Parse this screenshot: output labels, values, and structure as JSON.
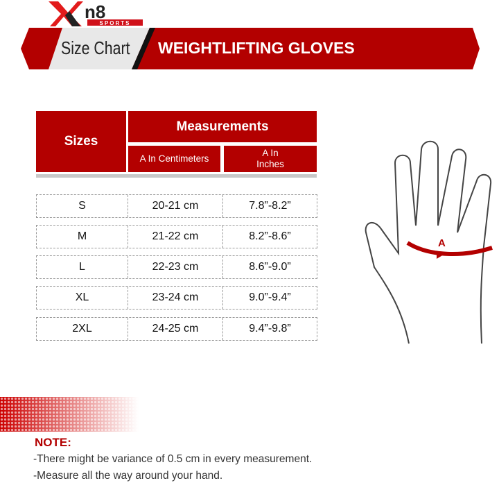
{
  "brand": {
    "logo_text": "Xn8",
    "logo_sub": "SPORTS"
  },
  "banner": {
    "left": "Size Chart",
    "right": "WEIGHTLIFTING GLOVES"
  },
  "colors": {
    "accent": "#b30000"
  },
  "table": {
    "header_sizes": "Sizes",
    "header_measurements": "Measurements",
    "sub_cm": "A In Centimeters",
    "sub_in": "A In Inches",
    "rows": [
      {
        "size": "S",
        "cm": "20-21 cm",
        "in": "7.8”-8.2”"
      },
      {
        "size": "M",
        "cm": "21-22 cm",
        "in": "8.2”-8.6”"
      },
      {
        "size": "L",
        "cm": "22-23 cm",
        "in": "8.6”-9.0”"
      },
      {
        "size": "XL",
        "cm": "23-24 cm",
        "in": "9.0”-9.4”"
      },
      {
        "size": "2XL",
        "cm": "24-25 cm",
        "in": "9.4”-9.8”"
      }
    ]
  },
  "hand": {
    "label": "A",
    "icon": "hand-outline-icon"
  },
  "note": {
    "heading": "NOTE:",
    "lines": [
      "-There might be variance of 0.5 cm in every measurement.",
      "-Measure all the way around your hand."
    ]
  }
}
